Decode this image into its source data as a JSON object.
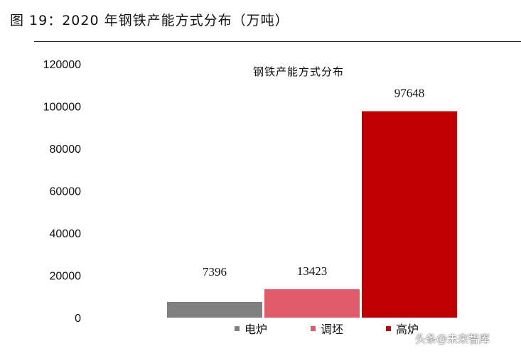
{
  "figure_title": "图 19：2020 年钢铁产能方式分布（万吨）",
  "watermark": "头条@未来智库",
  "chart_data": {
    "type": "bar",
    "title": "钢铁产能方式分布",
    "categories": [
      "电炉",
      "调坯",
      "高炉"
    ],
    "values": [
      7396,
      13423,
      97648
    ],
    "data_labels": [
      "7396",
      "13423",
      "97648"
    ],
    "colors": [
      "#808080",
      "#e05a6a",
      "#c00000"
    ],
    "ylim": [
      0,
      120000
    ],
    "yticks": [
      "0",
      "20000",
      "40000",
      "60000",
      "80000",
      "100000",
      "120000"
    ],
    "xlabel": "",
    "ylabel": "",
    "grid": false,
    "legend_position": "bottom"
  }
}
